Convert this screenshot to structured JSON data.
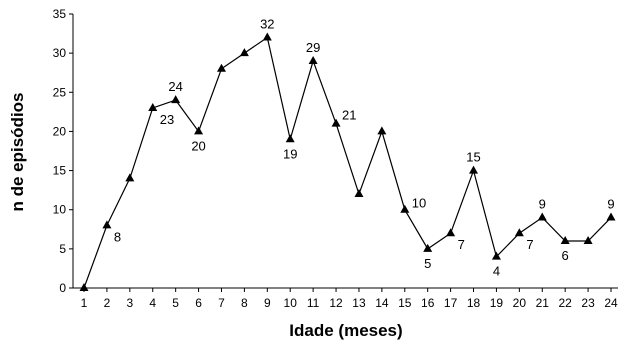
{
  "chart_data": {
    "type": "line",
    "title": "",
    "xlabel": "Idade (meses)",
    "ylabel": "n de episódios",
    "x": [
      1,
      2,
      3,
      4,
      5,
      6,
      7,
      8,
      9,
      10,
      11,
      12,
      13,
      14,
      15,
      16,
      17,
      18,
      19,
      20,
      21,
      22,
      23,
      24
    ],
    "series": [
      {
        "values": [
          0,
          8,
          14,
          23,
          24,
          20,
          28,
          30,
          32,
          19,
          29,
          21,
          12,
          20,
          10,
          5,
          7,
          15,
          4,
          7,
          9,
          6,
          6,
          9
        ]
      }
    ],
    "data_labels": [
      {
        "x": 2,
        "text": "8"
      },
      {
        "x": 4,
        "text": "23"
      },
      {
        "x": 5,
        "text": "24"
      },
      {
        "x": 6,
        "text": "20"
      },
      {
        "x": 9,
        "text": "32"
      },
      {
        "x": 10,
        "text": "19"
      },
      {
        "x": 11,
        "text": "29"
      },
      {
        "x": 12,
        "text": "21"
      },
      {
        "x": 15,
        "text": "10"
      },
      {
        "x": 16,
        "text": "5"
      },
      {
        "x": 17,
        "text": "7"
      },
      {
        "x": 18,
        "text": "15"
      },
      {
        "x": 19,
        "text": "4"
      },
      {
        "x": 20,
        "text": "7"
      },
      {
        "x": 21,
        "text": "9"
      },
      {
        "x": 22,
        "text": "6"
      },
      {
        "x": 24,
        "text": "9"
      }
    ],
    "xlim": [
      1,
      24
    ],
    "ylim": [
      0,
      35
    ],
    "yticks": [
      0,
      5,
      10,
      15,
      20,
      25,
      30,
      35
    ],
    "xticks": [
      1,
      2,
      3,
      4,
      5,
      6,
      7,
      8,
      9,
      10,
      11,
      12,
      13,
      14,
      15,
      16,
      17,
      18,
      19,
      20,
      21,
      22,
      23,
      24
    ],
    "marker": "triangle",
    "grid": false,
    "line_color": "#000000"
  }
}
